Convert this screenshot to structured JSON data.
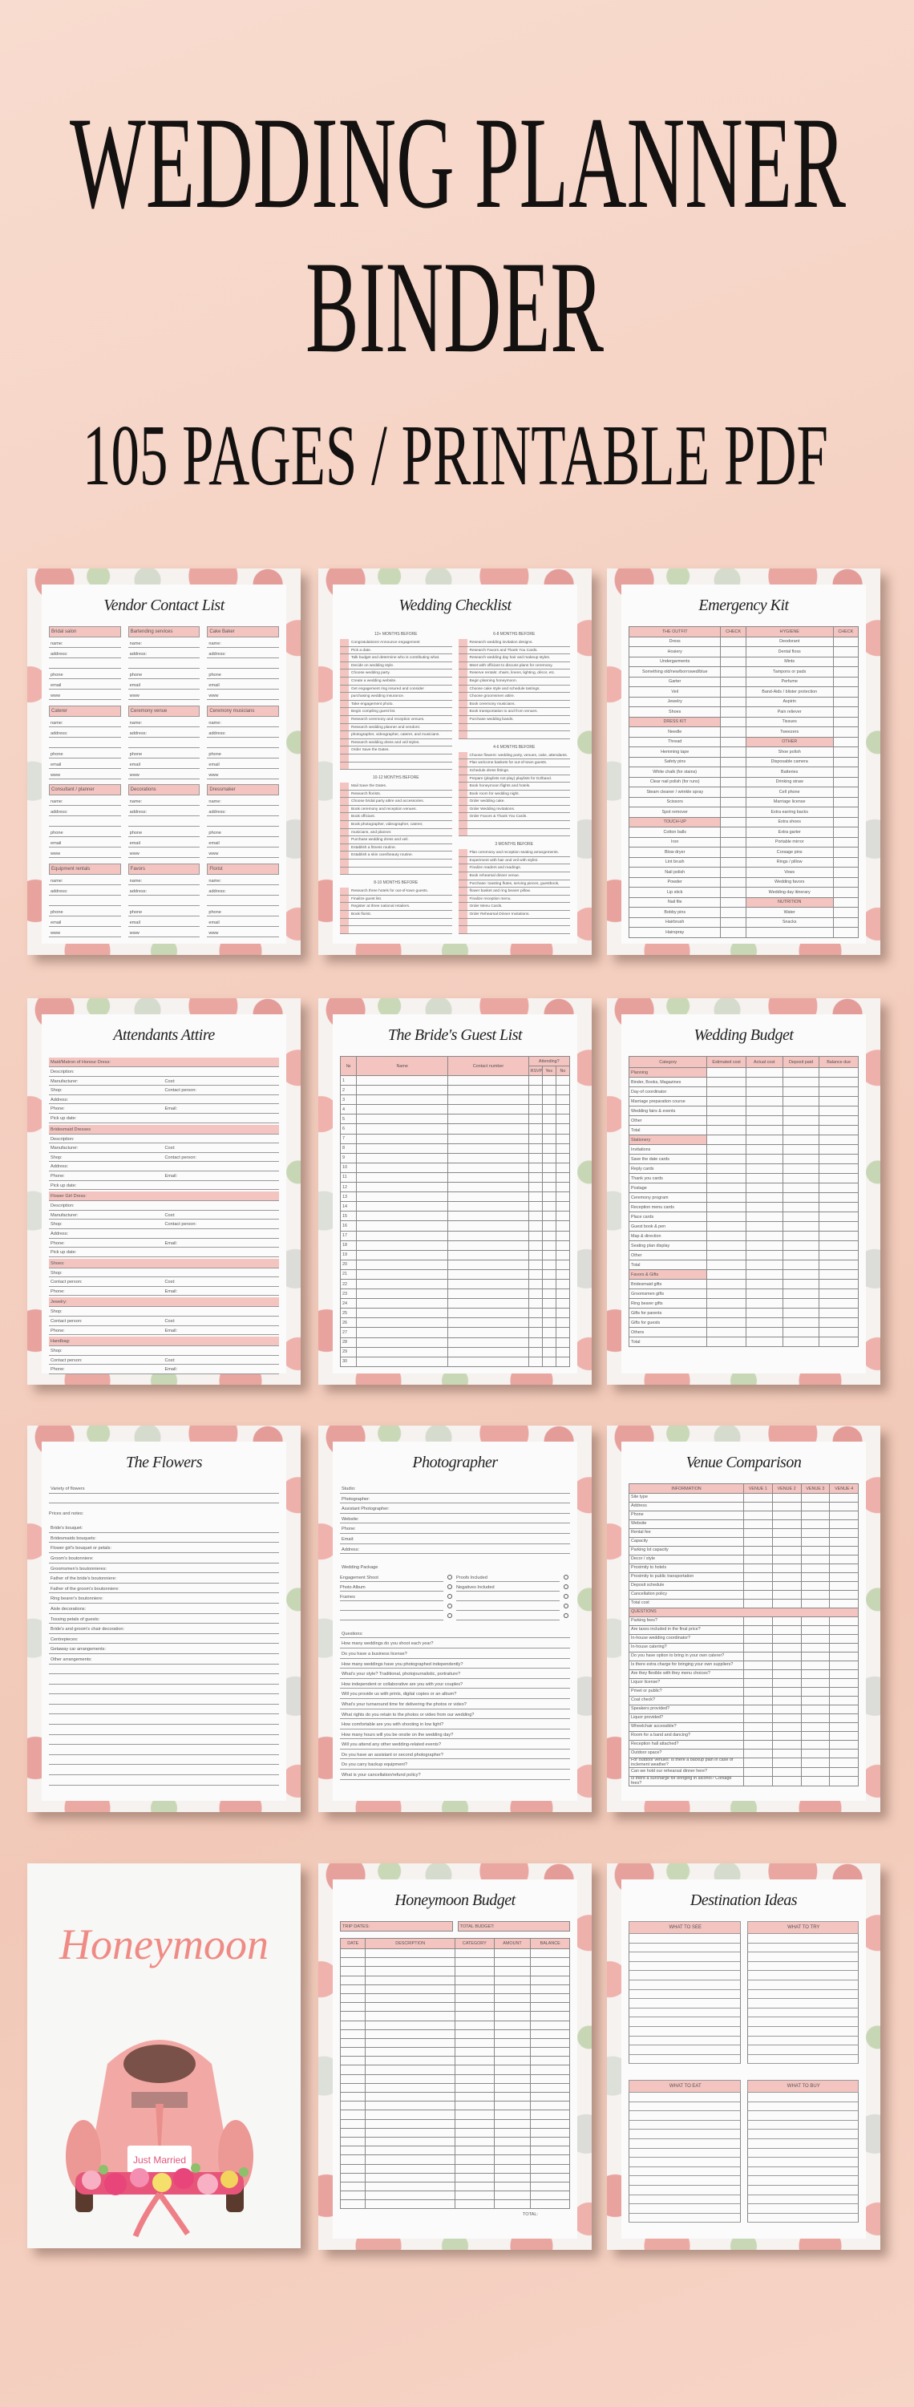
{
  "hero": {
    "line1": "WEDDING PLANNER",
    "line2": "BINDER",
    "line3": "105 PAGES / PRINTABLE PDF"
  },
  "colors": {
    "background": "#f4cfc0",
    "accent_pink": "#f3c4c0",
    "title_pink": "#ef8b84",
    "text": "#141111"
  },
  "pages": {
    "vendor": {
      "title": "Vendor Contact List",
      "vendors": [
        "Bridal salon",
        "Bartending services",
        "Cake Baker",
        "Caterer",
        "Ceremony venue",
        "Ceremony musicians",
        "Consultant / planner",
        "Decorations",
        "Dressmaker",
        "Equipment rentals",
        "Favors",
        "Florist"
      ],
      "fields": [
        "name:",
        "address:",
        "",
        "phone",
        "email",
        "www"
      ]
    },
    "checklist": {
      "title": "Wedding Checklist",
      "left": [
        {
          "heading": "12+ MONTHS BEFORE",
          "items": [
            "Congratulations! Announce engagement",
            "Pick a date.",
            "Talk budget and determine who is contributing what.",
            "Decide on wedding style.",
            "Choose wedding party.",
            "Create a wedding website.",
            "Get engagement ring insured and consider",
            "purchasing wedding insurance.",
            "Take engagement photo.",
            "Begin compiling guest list.",
            "Research ceremony and reception venues.",
            "Research wedding planner and vendors:",
            "photographer, videographer, caterer, and musicians.",
            "Research wedding dress and veil styles.",
            "Order Save the Dates."
          ]
        },
        {
          "heading": "10-12 MONTHS BEFORE",
          "items": [
            "Mail Save the Dates.",
            "Research florists.",
            "Choose bridal party attire and accessories.",
            "Book ceremony and reception venues.",
            "Book officiant.",
            "Book photographer, videographer, caterer,",
            "musicians, and planner.",
            "Purchase wedding dress and veil.",
            "Establish a fitness routine.",
            "Establish a skin care/beauty routine."
          ]
        },
        {
          "heading": "8-10 MONTHS BEFORE",
          "items": [
            "Research three hotels for out-of-town guests.",
            "Finalize guest list.",
            "Register at three national retailers.",
            "Book florist."
          ]
        }
      ],
      "right": [
        {
          "heading": "6-8 MONTHS BEFORE",
          "items": [
            "Research wedding invitation designs.",
            "Research Favors and Thank You Cards.",
            "Research wedding day hair and makeup styles.",
            "Meet with officiant to discuss plans for ceremony.",
            "Reserve rentals: chairs, linens, lighting, décor, etc.",
            "Begin planning honeymoon.",
            "Choose cake style and schedule tastings.",
            "Choose groomsmen attire.",
            "Book ceremony musicians.",
            "Book transportation to and from venues.",
            "Purchase wedding bands."
          ]
        },
        {
          "heading": "4-6 MONTHS BEFORE",
          "items": [
            "Choose flowers: wedding party, venues, cake, attendants.",
            "Plan welcome baskets for out-of-town guests.",
            "Schedule dress fittings.",
            "Prepare (playlists not play) playlists for DJ/band.",
            "Book honeymoon flights and hotels.",
            "Book room for wedding night.",
            "Order wedding cake.",
            "Order Wedding Invitations.",
            "Order Favors & Thank You Cards."
          ]
        },
        {
          "heading": "3 MONTHS BEFORE",
          "items": [
            "Plan ceremony and reception seating arrangements.",
            "Experiment with hair and veil with stylist.",
            "Finalize readers and readings.",
            "Book rehearsal dinner venue.",
            "Purchase: toasting flutes, serving pieces, guestbook,",
            "flower basket and ring bearer pillow.",
            "Finalize reception menu.",
            "Order Menu Cards.",
            "Order Rehearsal Dinner Invitations."
          ]
        }
      ]
    },
    "emergency": {
      "title": "Emergency Kit",
      "headers": [
        "THE OUTFIT",
        "CHECK",
        "HYGIENE",
        "CHECK"
      ],
      "left": [
        "Dress",
        "Hosiery",
        "Undergarments",
        "Something old/new/borrowed/blue",
        "Garter",
        "Veil",
        "Jewelry",
        "Shoes",
        {
          "section": "DRESS KIT"
        },
        "Needle",
        "Thread",
        "Hemming tape",
        "Safety pins",
        "White chalk (for stains)",
        "Clear nail polish (for runs)",
        "Steam cleaner / wrinkle spray",
        "Scissors",
        "Spot remover",
        {
          "section": "TOUCH-UP"
        },
        "Cotton balls",
        "Iron",
        "Blow dryer",
        "Lint brush",
        "Nail polish",
        "Powder",
        "Lip stick",
        "Nail file",
        "Bobby pins",
        "Hairbrush",
        "Hairspray"
      ],
      "right": [
        "Deodorant",
        "Dental floss",
        "Mints",
        "Tampons or pads",
        "Perfume",
        "Band-Aids / blister protection",
        "Aspirin",
        "Pain reliever",
        "Tissues",
        "Tweezers",
        {
          "section": "OTHER"
        },
        "Shoe polish",
        "Disposable camera",
        "Batteries",
        "Drinking straw",
        "Cell phone",
        "Marriage license",
        "Extra earring backs",
        "Extra shoes",
        "Extra garter",
        "Portable mirror",
        "Corsage pins",
        "Rings / pillow",
        "Vows",
        "Wedding favors",
        "Wedding day itinerary",
        {
          "section": "NUTRITION"
        },
        "Water",
        "Snacks",
        ""
      ]
    },
    "attire": {
      "title": "Attendants Attire",
      "sections": [
        {
          "title": "Maid/Matron of Honour Dress:",
          "fields": [
            [
              "Description:"
            ],
            [
              "Manufacturer:",
              "Cost:"
            ],
            [
              "Shop:",
              "Contact person:"
            ],
            [
              "Address:"
            ],
            [
              "Phone:",
              "Email:"
            ],
            [
              "Pick up date:"
            ]
          ]
        },
        {
          "title": "Bridesmaid Dresses",
          "fields": [
            [
              "Description:"
            ],
            [
              "Manufacturer:",
              "Cost:"
            ],
            [
              "Shop:",
              "Contact person:"
            ],
            [
              "Address:"
            ],
            [
              "Phone:",
              "Email:"
            ],
            [
              "Pick up date:"
            ]
          ]
        },
        {
          "title": "Flower Girl Dress:",
          "fields": [
            [
              "Description:"
            ],
            [
              "Manufacturer:",
              "Cost:"
            ],
            [
              "Shop:",
              "Contact person:"
            ],
            [
              "Address:"
            ],
            [
              "Phone:",
              "Email:"
            ],
            [
              "Pick up date:"
            ]
          ]
        },
        {
          "title": "Shoes:",
          "fields": [
            [
              "Shop:"
            ],
            [
              "Contact person:",
              "Cost:"
            ],
            [
              "Phone:",
              "Email:"
            ]
          ]
        },
        {
          "title": "Jewelry:",
          "fields": [
            [
              "Shop:"
            ],
            [
              "Contact person:",
              "Cost:"
            ],
            [
              "Phone:",
              "Email:"
            ]
          ]
        },
        {
          "title": "Handbag:",
          "fields": [
            [
              "Shop:"
            ],
            [
              "Contact person:",
              "Cost:"
            ],
            [
              "Phone:",
              "Email:"
            ]
          ]
        }
      ]
    },
    "guests": {
      "title": "The Bride's Guest List",
      "col_no": "№",
      "col_name": "Name",
      "col_contact": "Contact number",
      "attending": "Attending?",
      "rsvp": "RSVP",
      "yes": "Yes",
      "no": "No",
      "rows": [
        "1",
        "2",
        "3",
        "4",
        "5",
        "6",
        "7",
        "8",
        "9",
        "10",
        "11",
        "12",
        "13",
        "14",
        "15",
        "16",
        "17",
        "18",
        "19",
        "20",
        "21",
        "22",
        "23",
        "24",
        "25",
        "26",
        "27",
        "28",
        "29",
        "30"
      ]
    },
    "budget": {
      "title": "Wedding Budget",
      "columns": [
        "Category",
        "Estimated cost",
        "Actual cost",
        "Deposit paid",
        "Balance due"
      ],
      "rows": [
        {
          "section": "Planning"
        },
        "Binder, Books, Magazines",
        "Day-of coordinator",
        "Marriage preparation course",
        "Wedding fairs & events",
        "Other",
        "Total",
        {
          "section": "Stationery"
        },
        "Invitations",
        "Save the date cards",
        "Reply cards",
        "Thank you cards",
        "Postage",
        "Ceremony program",
        "Reception menu cards",
        "Place cards",
        "Guest book & pen",
        "Map & direction",
        "Seating plan display",
        "Other",
        "Total",
        {
          "section": "Favors & Gifts"
        },
        "Bridesmaid gifts",
        "Groomsmen gifts",
        "Ring bearer gifts",
        "Gifts for parents",
        "Gifts for guests",
        "Others",
        "Total"
      ]
    },
    "flowers": {
      "title": "The Flowers",
      "variety": "Variety of flowers",
      "prices": "Prices and notes:",
      "items": [
        "Bride's bouquet:",
        "Bridesmaids bouquets:",
        "Flower girl's bouquet or petals:",
        "Groom's boutonniere:",
        "Groomsmen's boutonnieres:",
        "Father of the bride's boutonniere:",
        "Father of the groom's boutonniere:",
        "Ring bearer's boutonniere:",
        "Aisle decorations:",
        "Tossing petals of guests:",
        "Bride's and groom's chair decoration:",
        "Centrepieces:",
        "Getaway car arrangements:",
        "Other arrangements:"
      ]
    },
    "photographer": {
      "title": "Photographer",
      "fields": [
        "Studio:",
        "Photographer:",
        "Assistant Photographer:",
        "Website:",
        "Phone:",
        "Email:",
        "Address:"
      ],
      "package_label": "Wedding Package",
      "options": [
        [
          "Engagement Shoot",
          "Proofs Included"
        ],
        [
          "Photo Album",
          "Negatives Included"
        ],
        [
          "Frames",
          ""
        ],
        [
          "",
          ""
        ],
        [
          "",
          ""
        ]
      ],
      "questions_label": "Questions:",
      "questions": [
        "How many weddings do you shoot each year?",
        "Do you have a business license?",
        "How many weddings have you photographed independently?",
        "What's your style? Traditional, photojournalistic, portraiture?",
        "How independent or collaborative are you with your couples?",
        "Will you provide us with prints, digital copies or an album?",
        "What's your turnaround time for delivering the photos or video?",
        "What rights do you retain to the photos or video from our wedding?",
        "How comfortable are you with shooting in low light?",
        "How many hours will you be onsite on the wedding day?",
        "Will you attend any other wedding-related events?",
        "Do you have an assistant or second photographer?",
        "Do you carry backup equipment?",
        "What is your cancellation/refund policy?"
      ]
    },
    "venue": {
      "title": "Venue Comparison",
      "columns": [
        "INFORMATION",
        "VENUE 1",
        "VENUE 2",
        "VENUE 3",
        "VENUE 4"
      ],
      "rows": [
        "Site type",
        "Address",
        "Phone",
        "Website",
        "Rental fee",
        "Capacity",
        "Parking lot capacity",
        "Decor / style",
        "Proximity to hotels",
        "Proximity to public transportation",
        "Deposit schedule",
        "Cancellation policy",
        "Total cost",
        {
          "section": "QUESTIONS"
        },
        "Parking fees?",
        "Are taxes included in the final price?",
        "In-house wedding coordinator?",
        "In-house catering?",
        "Do you have option to bring in your own caterer?",
        "Is there extra charge for bringing your own suppliers?",
        "Are they flexible with they menu choices?",
        "Liquor license?",
        "Privet or public?",
        "Coat check?",
        "Speakers provided?",
        "Liquor provided?",
        "Wheelchair accessible?",
        "Room for a band and dancing?",
        "Reception hall attached?",
        "Outdoor space?",
        "For outdoor venues: Is there a backup plan in case of inclement weather?",
        "Can we hold our rehearsal dinner here?",
        "Is there a surcharge for bringing in alcohol? Corkage fees?"
      ]
    },
    "honeymoon_cover": {
      "title": "Honeymoon",
      "plate": "Just Married"
    },
    "honeymoon_budget": {
      "title": "Honeymoon Budget",
      "trip_dates": "TRIP DATES:",
      "total_budget": "TOTAL BUDGET:",
      "columns": [
        "DATE",
        "DESCRIPTION",
        "CATEGORY",
        "AMOUNT",
        "BALANCE"
      ],
      "total": "TOTAL:"
    },
    "destination": {
      "title": "Destination Ideas",
      "boxes": [
        "WHAT TO SEE",
        "WHAT TO TRY",
        "WHAT TO EAT",
        "WHAT TO BUY"
      ]
    }
  }
}
